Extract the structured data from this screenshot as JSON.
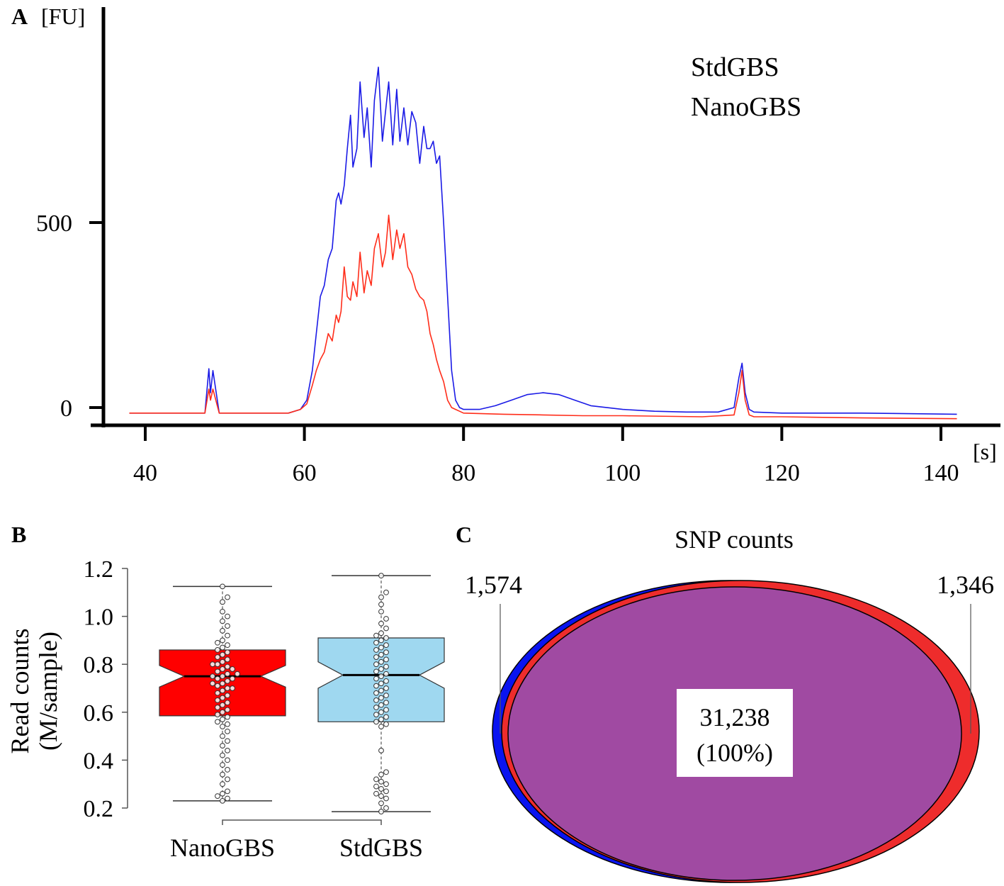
{
  "panel_a": {
    "label": "A",
    "y_unit": "[FU]",
    "x_unit": "[s]",
    "legend": [
      {
        "name": "StdGBS",
        "color": "#1a1ae6"
      },
      {
        "name": "NanoGBS",
        "color": "#ff2d1a"
      }
    ]
  },
  "panel_b": {
    "label": "B",
    "ylabel_line1": "Read counts",
    "ylabel_line2": "(M/sample)"
  },
  "panel_c": {
    "label": "C",
    "title": "SNP counts",
    "left_count": "1,574",
    "right_count": "1,346",
    "center_count": "31,238",
    "center_percent": "(100%)",
    "colors": {
      "std": "#0a14f0",
      "nano": "#ee2c2c",
      "overlap": "#a04aa2"
    }
  },
  "chart_data": [
    {
      "type": "line",
      "title": "",
      "xlabel": "[s]",
      "ylabel": "[FU]",
      "xlim": [
        34,
        146
      ],
      "ylim": [
        -50,
        1080
      ],
      "xticks": [
        40,
        60,
        80,
        100,
        120,
        140
      ],
      "yticks": [
        0,
        500
      ],
      "series": [
        {
          "name": "StdGBS",
          "color": "#1a1ae6",
          "x": [
            38,
            47.5,
            48,
            48.2,
            48.5,
            49.3,
            58,
            59.5,
            60.3,
            61,
            61.5,
            62,
            62.5,
            63,
            63.5,
            64,
            64.3,
            64.6,
            65,
            65.4,
            65.8,
            66.1,
            66.6,
            67,
            67.5,
            67.9,
            68.4,
            68.8,
            69.3,
            69.8,
            70.2,
            70.6,
            71.1,
            71.6,
            72,
            72.5,
            73,
            73.5,
            74,
            74.5,
            75,
            75.4,
            75.8,
            76.2,
            76.6,
            77,
            77.5,
            78,
            78.5,
            79,
            79.5,
            80,
            82,
            84,
            86,
            88,
            90,
            92,
            94,
            96,
            100,
            104,
            108,
            112,
            114,
            114.6,
            115,
            115.4,
            115.9,
            116.5,
            120,
            130,
            142
          ],
          "y": [
            -15,
            -15,
            105,
            40,
            100,
            -15,
            -15,
            -5,
            20,
            100,
            200,
            300,
            330,
            400,
            430,
            560,
            580,
            550,
            600,
            700,
            790,
            650,
            700,
            880,
            730,
            810,
            650,
            830,
            920,
            720,
            800,
            880,
            710,
            860,
            720,
            810,
            710,
            800,
            770,
            660,
            760,
            700,
            700,
            720,
            660,
            680,
            500,
            300,
            100,
            20,
            0,
            -5,
            -5,
            5,
            20,
            35,
            40,
            35,
            20,
            5,
            -5,
            -10,
            -12,
            -12,
            0,
            80,
            120,
            40,
            -5,
            -12,
            -15,
            -15,
            -18
          ]
        },
        {
          "name": "NanoGBS",
          "color": "#ff2d1a",
          "x": [
            38,
            47.5,
            48,
            48.2,
            48.5,
            49.3,
            58,
            59.5,
            60.3,
            61,
            61.5,
            62,
            62.5,
            63,
            63.5,
            64,
            64.3,
            64.6,
            65,
            65.4,
            65.8,
            66.1,
            66.6,
            67,
            67.5,
            67.9,
            68.4,
            68.8,
            69.3,
            69.8,
            70.2,
            70.6,
            71.1,
            71.6,
            72,
            72.5,
            73,
            73.5,
            74,
            74.5,
            75,
            75.4,
            75.8,
            76.2,
            76.6,
            77,
            77.5,
            78,
            78.5,
            79,
            79.5,
            80,
            85,
            90,
            95,
            100,
            110,
            114,
            114.6,
            115,
            115.4,
            115.9,
            116.5,
            120,
            130,
            142
          ],
          "y": [
            -15,
            -15,
            50,
            20,
            50,
            -15,
            -15,
            -5,
            10,
            60,
            100,
            130,
            150,
            200,
            180,
            250,
            230,
            260,
            380,
            300,
            290,
            340,
            300,
            420,
            310,
            370,
            330,
            430,
            470,
            380,
            420,
            520,
            400,
            480,
            430,
            470,
            380,
            360,
            320,
            300,
            290,
            260,
            200,
            170,
            130,
            100,
            70,
            20,
            0,
            -5,
            -10,
            -15,
            -18,
            -20,
            -22,
            -22,
            -25,
            -20,
            40,
            100,
            20,
            -20,
            -25,
            -25,
            -28,
            -30
          ]
        }
      ]
    },
    {
      "type": "box",
      "title": "",
      "xlabel": "",
      "ylabel": "Read counts (M/sample)",
      "ylim": [
        0.2,
        1.2
      ],
      "yticks": [
        0.2,
        0.4,
        0.6,
        0.8,
        1.0,
        1.2
      ],
      "ytick_labels": [
        "0.2",
        "0.4",
        "0.6",
        "0.8",
        "1.0",
        "1.2"
      ],
      "categories": [
        "NanoGBS",
        "StdGBS"
      ],
      "boxes": [
        {
          "name": "NanoGBS",
          "color": "#ff0000",
          "min": 0.23,
          "q1": 0.585,
          "median": 0.75,
          "q3": 0.86,
          "max": 1.125,
          "notch_low": 0.705,
          "notch_high": 0.795
        },
        {
          "name": "StdGBS",
          "color": "#9fd8f0",
          "min": 0.185,
          "q1": 0.56,
          "median": 0.755,
          "q3": 0.91,
          "max": 1.17,
          "notch_low": 0.7,
          "notch_high": 0.81
        }
      ],
      "points": [
        [
          0.23,
          0.24,
          0.25,
          0.26,
          0.27,
          0.3,
          0.32,
          0.34,
          0.36,
          0.38,
          0.4,
          0.42,
          0.44,
          0.46,
          0.48,
          0.5,
          0.52,
          0.54,
          0.55,
          0.56,
          0.57,
          0.58,
          0.59,
          0.6,
          0.61,
          0.62,
          0.63,
          0.64,
          0.65,
          0.66,
          0.67,
          0.68,
          0.69,
          0.7,
          0.7,
          0.71,
          0.72,
          0.72,
          0.73,
          0.74,
          0.74,
          0.75,
          0.75,
          0.76,
          0.76,
          0.77,
          0.78,
          0.78,
          0.79,
          0.8,
          0.8,
          0.81,
          0.82,
          0.83,
          0.84,
          0.85,
          0.86,
          0.87,
          0.88,
          0.89,
          0.9,
          0.92,
          0.94,
          0.96,
          0.98,
          1.0,
          1.02,
          1.06,
          1.08,
          1.125
        ],
        [
          0.185,
          0.2,
          0.22,
          0.24,
          0.25,
          0.26,
          0.27,
          0.28,
          0.29,
          0.3,
          0.31,
          0.32,
          0.34,
          0.35,
          0.44,
          0.54,
          0.55,
          0.56,
          0.57,
          0.58,
          0.59,
          0.6,
          0.61,
          0.62,
          0.63,
          0.64,
          0.65,
          0.66,
          0.67,
          0.68,
          0.69,
          0.7,
          0.71,
          0.72,
          0.73,
          0.74,
          0.75,
          0.76,
          0.77,
          0.78,
          0.79,
          0.8,
          0.81,
          0.82,
          0.83,
          0.84,
          0.85,
          0.86,
          0.87,
          0.88,
          0.89,
          0.9,
          0.91,
          0.92,
          0.93,
          0.95,
          0.97,
          0.99,
          1.02,
          1.05,
          1.08,
          1.1,
          1.17
        ]
      ]
    },
    {
      "type": "venn",
      "title": "SNP counts",
      "sets": [
        {
          "name": "StdGBS",
          "only": 1574,
          "color": "#0a14f0"
        },
        {
          "name": "NanoGBS",
          "only": 1346,
          "color": "#ee2c2c"
        }
      ],
      "overlap": 31238,
      "overlap_label": "(100%)"
    }
  ]
}
